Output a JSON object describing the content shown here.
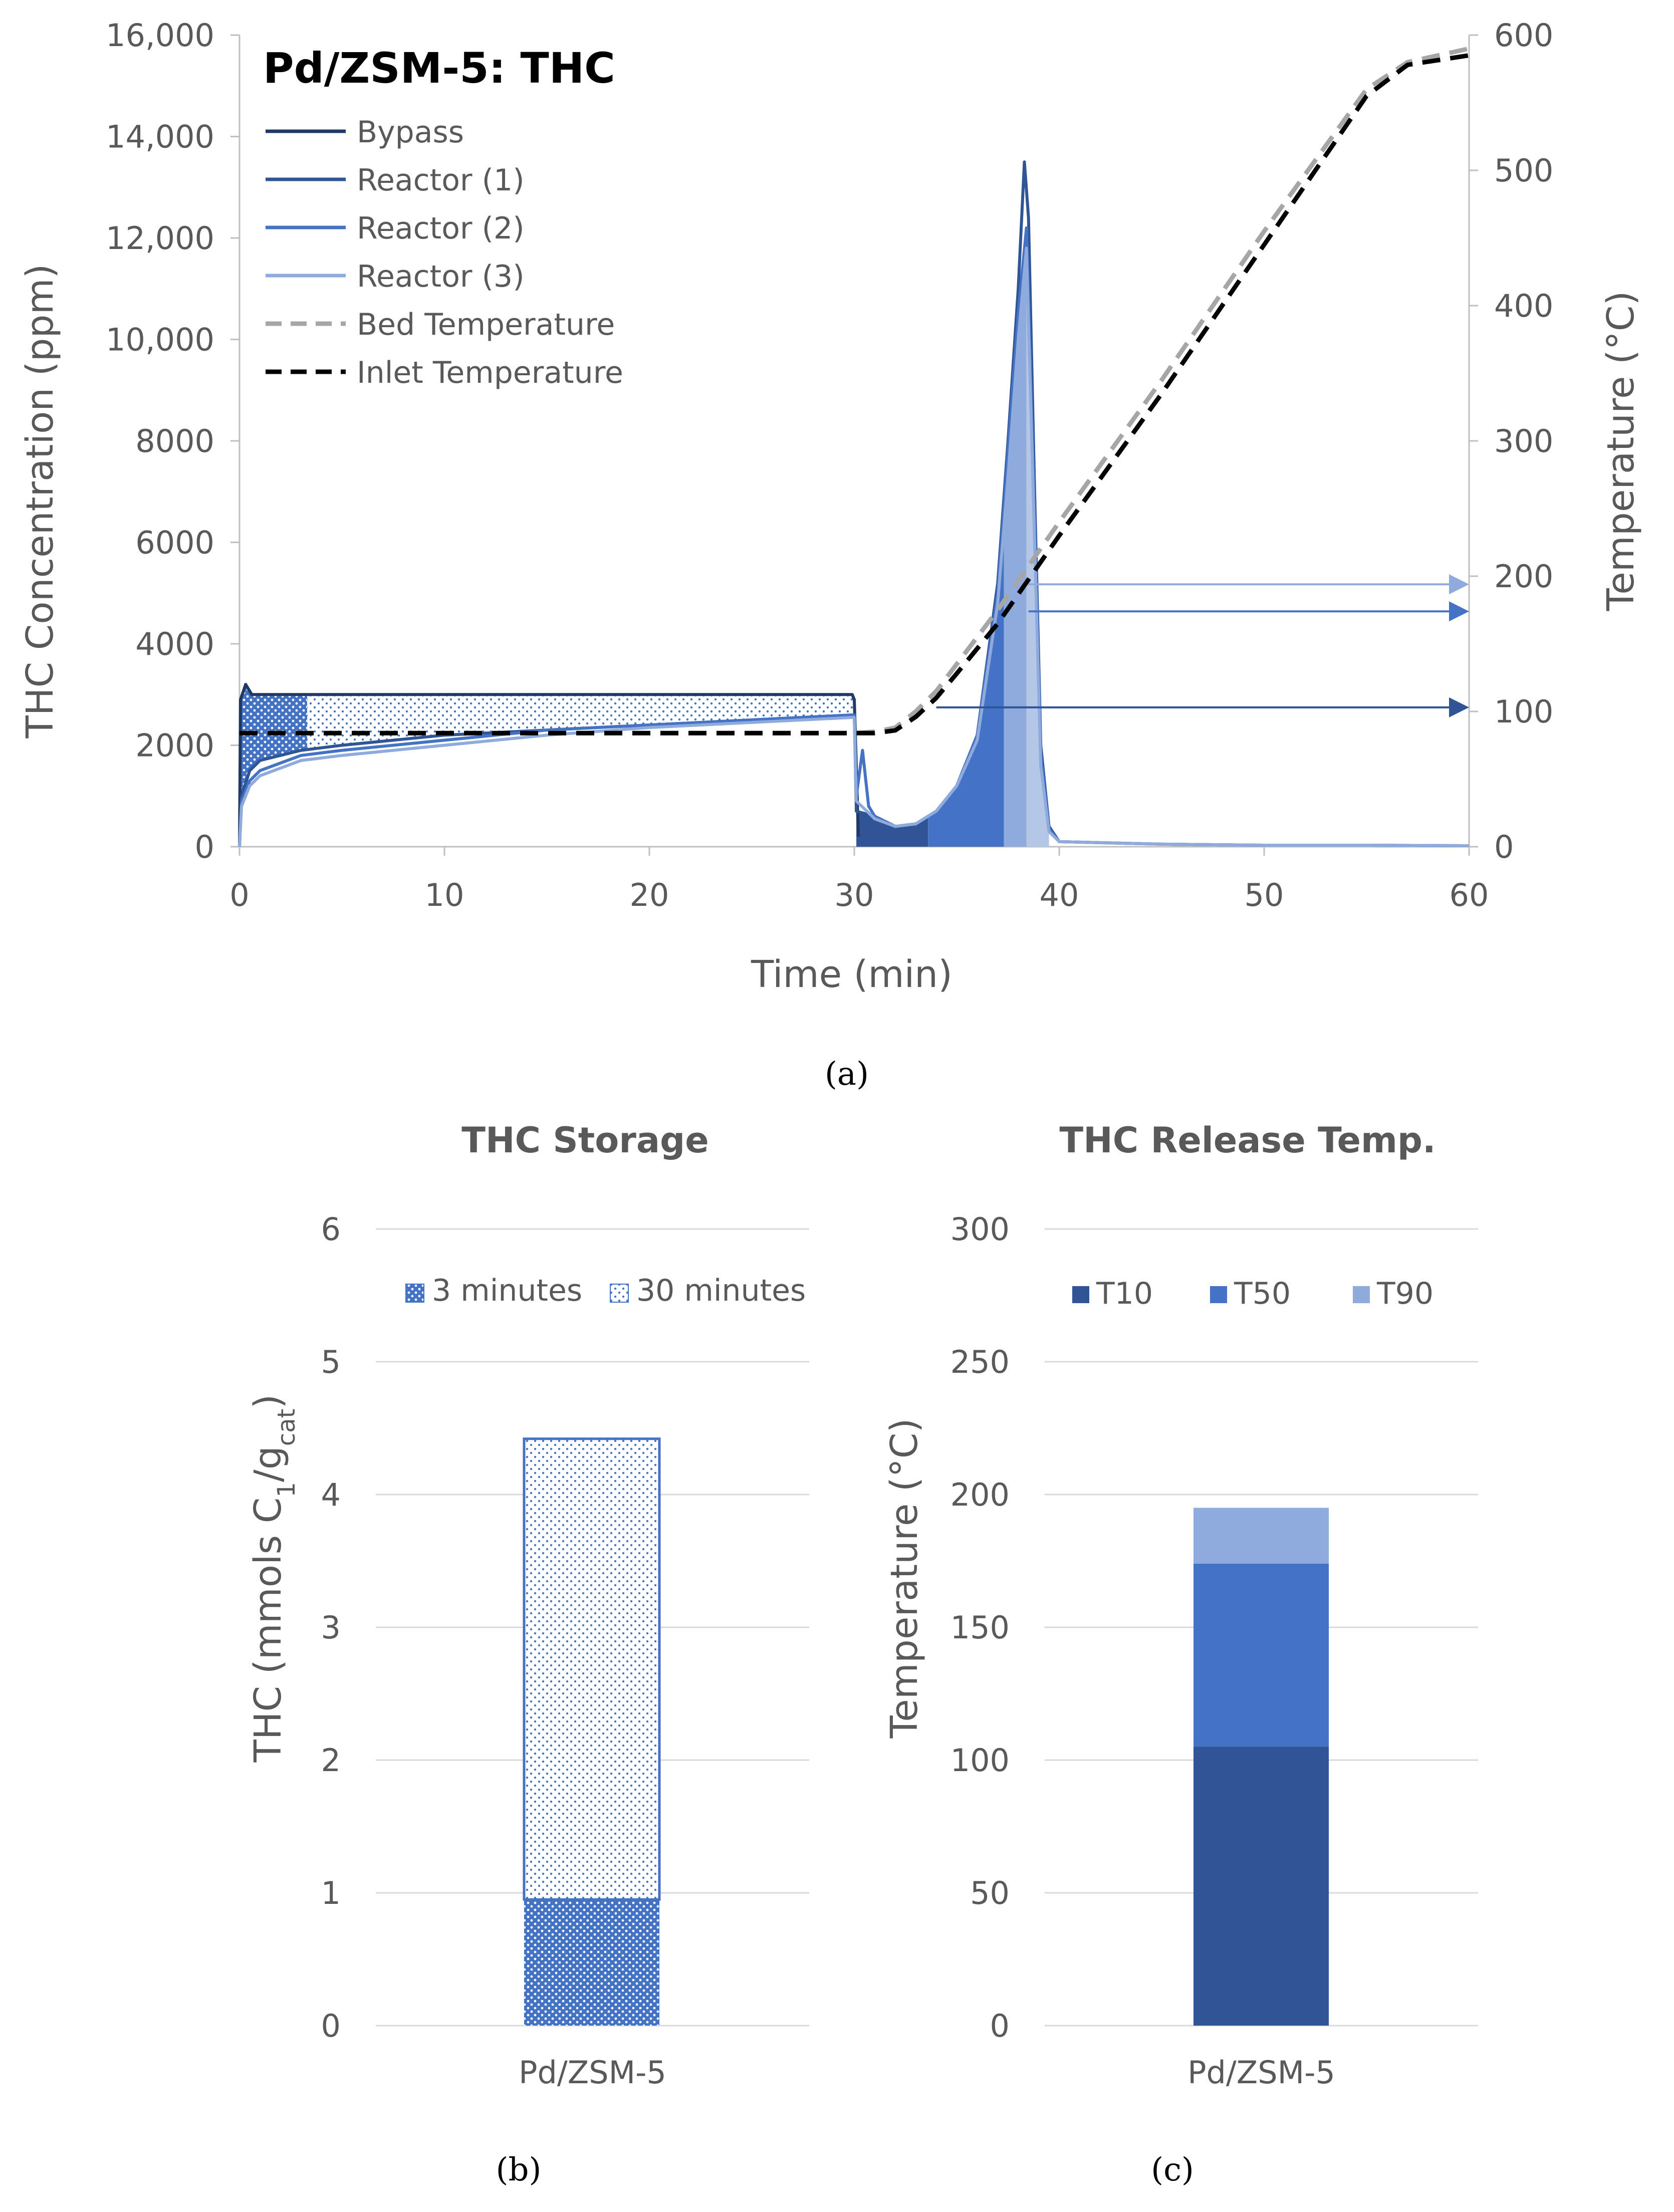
{
  "chart_data": [
    {
      "id": "a",
      "type": "line",
      "title": "Pd/ZSM-5: THC",
      "caption": "(a)",
      "xlabel": "Time (min)",
      "ylabel": "THC Concentration (ppm)",
      "y2label": "Temperature (°C)",
      "xlim": [
        0,
        60
      ],
      "ylim": [
        0,
        16000
      ],
      "y2lim": [
        0,
        600
      ],
      "xticks": [
        "0",
        "10",
        "20",
        "30",
        "40",
        "50",
        "60"
      ],
      "yticks": [
        "0",
        "2000",
        "4000",
        "6000",
        "8000",
        "10,000",
        "12,000",
        "14,000",
        "16,000"
      ],
      "y2ticks": [
        "0",
        "100",
        "200",
        "300",
        "400",
        "500",
        "600"
      ],
      "legend": [
        {
          "name": "Bypass",
          "color": "#1f3864",
          "dash": false
        },
        {
          "name": "Reactor (1)",
          "color": "#2f5597",
          "dash": false
        },
        {
          "name": "Reactor (2)",
          "color": "#4472c4",
          "dash": false
        },
        {
          "name": "Reactor (3)",
          "color": "#8faadc",
          "dash": false
        },
        {
          "name": "Bed Temperature",
          "color": "#a6a6a6",
          "dash": true
        },
        {
          "name": "Inlet Temperature",
          "color": "#000000",
          "dash": true
        }
      ],
      "series": [
        {
          "name": "Bypass",
          "axis": "left",
          "x": [
            0,
            0.05,
            0.3,
            0.6,
            1,
            2,
            5,
            10,
            15,
            20,
            25,
            29.9,
            30.0,
            30.2
          ],
          "y": [
            0,
            2900,
            3200,
            3000,
            3000,
            3000,
            3000,
            3000,
            3000,
            3000,
            3000,
            3000,
            2900,
            200
          ]
        },
        {
          "name": "Reactor (1)",
          "axis": "left",
          "x": [
            0,
            0.1,
            0.5,
            1,
            3,
            5,
            10,
            15,
            20,
            25,
            30,
            30.1,
            31,
            32,
            33,
            34,
            35,
            36,
            37,
            37.5,
            38,
            38.3,
            38.5,
            38.8,
            39.1,
            39.5,
            40,
            45,
            50,
            55,
            60
          ],
          "y": [
            0,
            1000,
            1500,
            1700,
            1900,
            2000,
            2200,
            2300,
            2400,
            2500,
            2600,
            700,
            600,
            400,
            450,
            700,
            1200,
            2200,
            5200,
            8000,
            11000,
            13500,
            12400,
            7000,
            2000,
            400,
            100,
            50,
            30,
            30,
            20
          ]
        },
        {
          "name": "Reactor (2)",
          "axis": "left",
          "x": [
            0,
            0.1,
            0.5,
            1,
            3,
            5,
            10,
            15,
            20,
            25,
            30,
            30.1,
            30.4,
            30.7,
            31,
            32,
            33,
            34,
            35,
            36,
            37,
            37.5,
            38,
            38.4,
            38.8,
            39.1,
            39.5,
            40,
            45,
            50,
            55,
            60
          ],
          "y": [
            0,
            900,
            1300,
            1500,
            1800,
            1900,
            2100,
            2300,
            2400,
            2500,
            2600,
            1000,
            1900,
            800,
            600,
            400,
            450,
            700,
            1200,
            2200,
            5000,
            7800,
            10500,
            12200,
            6500,
            1800,
            350,
            100,
            50,
            30,
            30,
            20
          ]
        },
        {
          "name": "Reactor (3)",
          "axis": "left",
          "x": [
            0,
            0.1,
            0.5,
            1,
            3,
            5,
            10,
            15,
            20,
            25,
            30,
            30.1,
            31,
            32,
            33,
            34,
            35,
            36,
            37,
            37.5,
            38,
            38.4,
            38.8,
            39.1,
            39.5,
            40,
            45,
            50,
            55,
            60
          ],
          "y": [
            0,
            800,
            1200,
            1400,
            1700,
            1800,
            2000,
            2200,
            2350,
            2450,
            2550,
            900,
            550,
            400,
            450,
            700,
            1200,
            2100,
            4800,
            7300,
            10000,
            11800,
            6000,
            1600,
            300,
            100,
            50,
            30,
            30,
            20
          ]
        },
        {
          "name": "Bed Temperature",
          "axis": "right",
          "x": [
            0,
            10,
            20,
            30,
            31,
            32,
            33,
            34,
            35,
            37,
            40,
            45,
            50,
            55,
            57,
            60
          ],
          "y": [
            84,
            84,
            84,
            84,
            85,
            88,
            100,
            115,
            135,
            175,
            240,
            345,
            455,
            560,
            580,
            590
          ]
        },
        {
          "name": "Inlet Temperature",
          "axis": "right",
          "x": [
            0,
            10,
            20,
            30,
            31,
            32,
            33,
            34,
            35,
            37,
            40,
            45,
            50,
            55,
            57,
            60
          ],
          "y": [
            84,
            84,
            84,
            84,
            84,
            86,
            96,
            110,
            128,
            165,
            230,
            335,
            445,
            555,
            578,
            585
          ]
        }
      ],
      "arrows": [
        {
          "x0": 34,
          "yTemp": 103,
          "color": "#2f5597"
        },
        {
          "x0": 38.5,
          "yTemp": 174,
          "color": "#4472c4"
        },
        {
          "x0": 38.5,
          "yTemp": 194,
          "color": "#8faadc"
        }
      ]
    },
    {
      "id": "b",
      "type": "bar",
      "title": "THC Storage",
      "caption": "(b)",
      "ylabel_main": "THC (mmols C",
      "ylabel_sub1": "1",
      "ylabel_mid": "/g",
      "ylabel_sub2": "cat",
      "ylabel_end": ")",
      "categories": [
        "Pd/ZSM-5"
      ],
      "ylim": [
        0,
        6
      ],
      "yticks": [
        "0",
        "1",
        "2",
        "3",
        "4",
        "5",
        "6"
      ],
      "series": [
        {
          "name": "3 minutes",
          "values": [
            0.95
          ]
        },
        {
          "name": "30 minutes",
          "values": [
            4.42
          ]
        }
      ]
    },
    {
      "id": "c",
      "type": "bar",
      "title": "THC Release Temp.",
      "caption": "(c)",
      "ylabel": "Temperature (°C)",
      "categories": [
        "Pd/ZSM-5"
      ],
      "ylim": [
        0,
        300
      ],
      "yticks": [
        "0",
        "50",
        "100",
        "150",
        "200",
        "250",
        "300"
      ],
      "series": [
        {
          "name": "T10",
          "values": [
            105
          ],
          "color": "#2f5597"
        },
        {
          "name": "T50",
          "values": [
            174
          ],
          "color": "#4472c4"
        },
        {
          "name": "T90",
          "values": [
            195
          ],
          "color": "#8faadc"
        }
      ]
    }
  ],
  "colors": {
    "bypass": "#1f3864",
    "r1": "#2f5597",
    "r2": "#4472c4",
    "r3": "#8faadc",
    "axis_text": "#595959",
    "grid": "#d9d9d9"
  }
}
